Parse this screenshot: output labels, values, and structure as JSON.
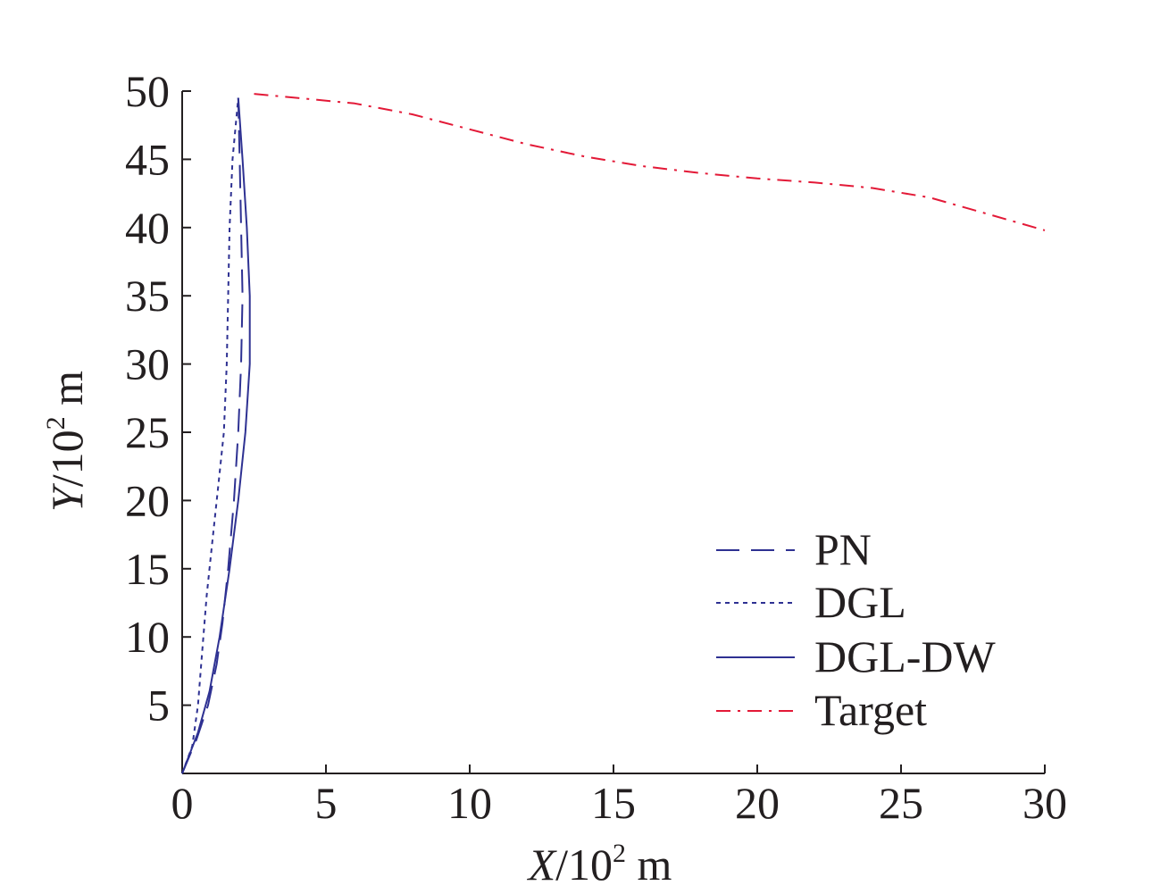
{
  "chart_data": {
    "type": "line",
    "xlabel": {
      "var": "X",
      "base": "/10",
      "exp": "2",
      "unit": " m"
    },
    "ylabel": {
      "var": "Y",
      "base": "/10",
      "exp": "2",
      "unit": " m"
    },
    "xlim": [
      0,
      30
    ],
    "ylim": [
      0,
      50
    ],
    "xticks": [
      0,
      5,
      10,
      15,
      20,
      25,
      30
    ],
    "yticks": [
      5,
      10,
      15,
      20,
      25,
      30,
      35,
      40,
      45,
      50
    ],
    "grid": false,
    "legend_position": "bottom-right",
    "series": [
      {
        "name": "PN",
        "color": "#2e3192",
        "dash": "dashed",
        "points": [
          [
            0,
            0
          ],
          [
            0.5,
            2.5
          ],
          [
            0.9,
            5
          ],
          [
            1.2,
            8
          ],
          [
            1.4,
            11
          ],
          [
            1.6,
            15
          ],
          [
            1.8,
            20
          ],
          [
            1.95,
            25
          ],
          [
            2.05,
            30
          ],
          [
            2.1,
            35
          ],
          [
            2.05,
            40
          ],
          [
            2.0,
            45
          ],
          [
            1.95,
            49.5
          ]
        ]
      },
      {
        "name": "DGL",
        "color": "#2e3192",
        "dash": "dotted",
        "points": [
          [
            0,
            0
          ],
          [
            0.35,
            2
          ],
          [
            0.55,
            5
          ],
          [
            0.7,
            9
          ],
          [
            0.85,
            13
          ],
          [
            1.05,
            17
          ],
          [
            1.25,
            21
          ],
          [
            1.45,
            25
          ],
          [
            1.55,
            30
          ],
          [
            1.6,
            35
          ],
          [
            1.65,
            40
          ],
          [
            1.75,
            45
          ],
          [
            1.95,
            49.5
          ]
        ]
      },
      {
        "name": "DGL-DW",
        "color": "#2e3192",
        "dash": "solid",
        "points": [
          [
            0,
            0
          ],
          [
            0.55,
            3
          ],
          [
            0.95,
            6
          ],
          [
            1.3,
            10
          ],
          [
            1.65,
            15
          ],
          [
            1.95,
            20
          ],
          [
            2.2,
            25
          ],
          [
            2.35,
            30
          ],
          [
            2.35,
            35
          ],
          [
            2.25,
            40
          ],
          [
            2.1,
            45
          ],
          [
            1.95,
            49.5
          ]
        ]
      },
      {
        "name": "Target",
        "color": "#e31937",
        "dash": "dashdot",
        "points": [
          [
            2.5,
            49.8
          ],
          [
            4,
            49.5
          ],
          [
            6,
            49.1
          ],
          [
            8,
            48.3
          ],
          [
            10,
            47.2
          ],
          [
            12,
            46.1
          ],
          [
            14,
            45.2
          ],
          [
            16,
            44.5
          ],
          [
            18,
            44.0
          ],
          [
            20,
            43.6
          ],
          [
            22,
            43.3
          ],
          [
            24,
            42.9
          ],
          [
            26,
            42.2
          ],
          [
            28,
            41.0
          ],
          [
            30,
            39.8
          ]
        ]
      }
    ]
  }
}
